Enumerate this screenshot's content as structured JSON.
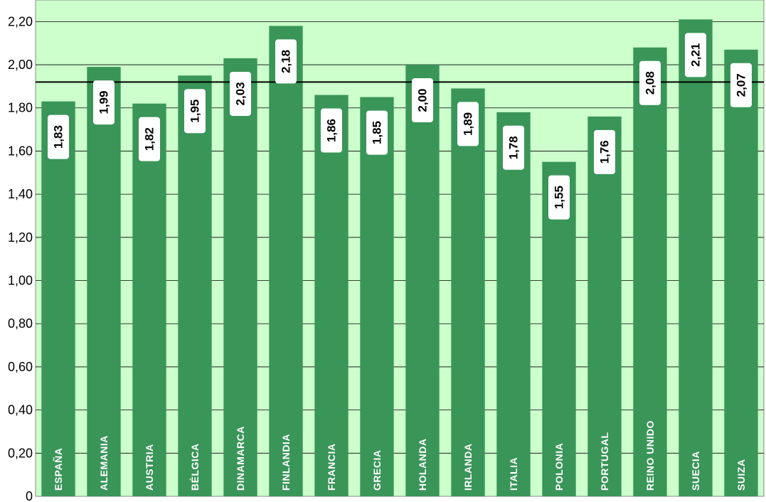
{
  "chart_data": {
    "type": "bar",
    "categories": [
      "ESPAÑA",
      "ALEMANIA",
      "AUSTRIA",
      "BÉLGICA",
      "DINAMARCA",
      "FINLANDIA",
      "FRANCIA",
      "GRECIA",
      "HOLANDA",
      "IRLANDA",
      "ITALIA",
      "POLONIA",
      "PORTUGAL",
      "REINO UNIDO",
      "SUECIA",
      "SUIZA"
    ],
    "values": [
      1.83,
      1.99,
      1.82,
      1.95,
      2.03,
      2.18,
      1.86,
      1.85,
      2.0,
      1.89,
      1.78,
      1.55,
      1.76,
      2.08,
      2.21,
      2.07
    ],
    "value_labels": [
      "1,83",
      "1,99",
      "1,82",
      "1,95",
      "2,03",
      "2,18",
      "1,86",
      "1,85",
      "2,00",
      "1,89",
      "1,78",
      "1,55",
      "1,76",
      "2,08",
      "2,21",
      "2,07"
    ],
    "y_ticks": [
      0,
      0.2,
      0.4,
      0.6,
      0.8,
      1.0,
      1.2,
      1.4,
      1.6,
      1.8,
      2.0,
      2.2
    ],
    "y_tick_labels": [
      "0",
      "0,20",
      "0,40",
      "0,60",
      "0,80",
      "1,00",
      "1,20",
      "1,40",
      "1,60",
      "1,80",
      "2,00",
      "2,20"
    ],
    "ylim": [
      0,
      2.3
    ],
    "reference_line": 1.92,
    "grid": true,
    "colors": {
      "plot_background": "#ccffcc",
      "bar": "#3a9558",
      "gridline": "#000000",
      "reference_line": "#000000",
      "value_box": "#ffffff",
      "category_text": "#ffffff"
    }
  }
}
